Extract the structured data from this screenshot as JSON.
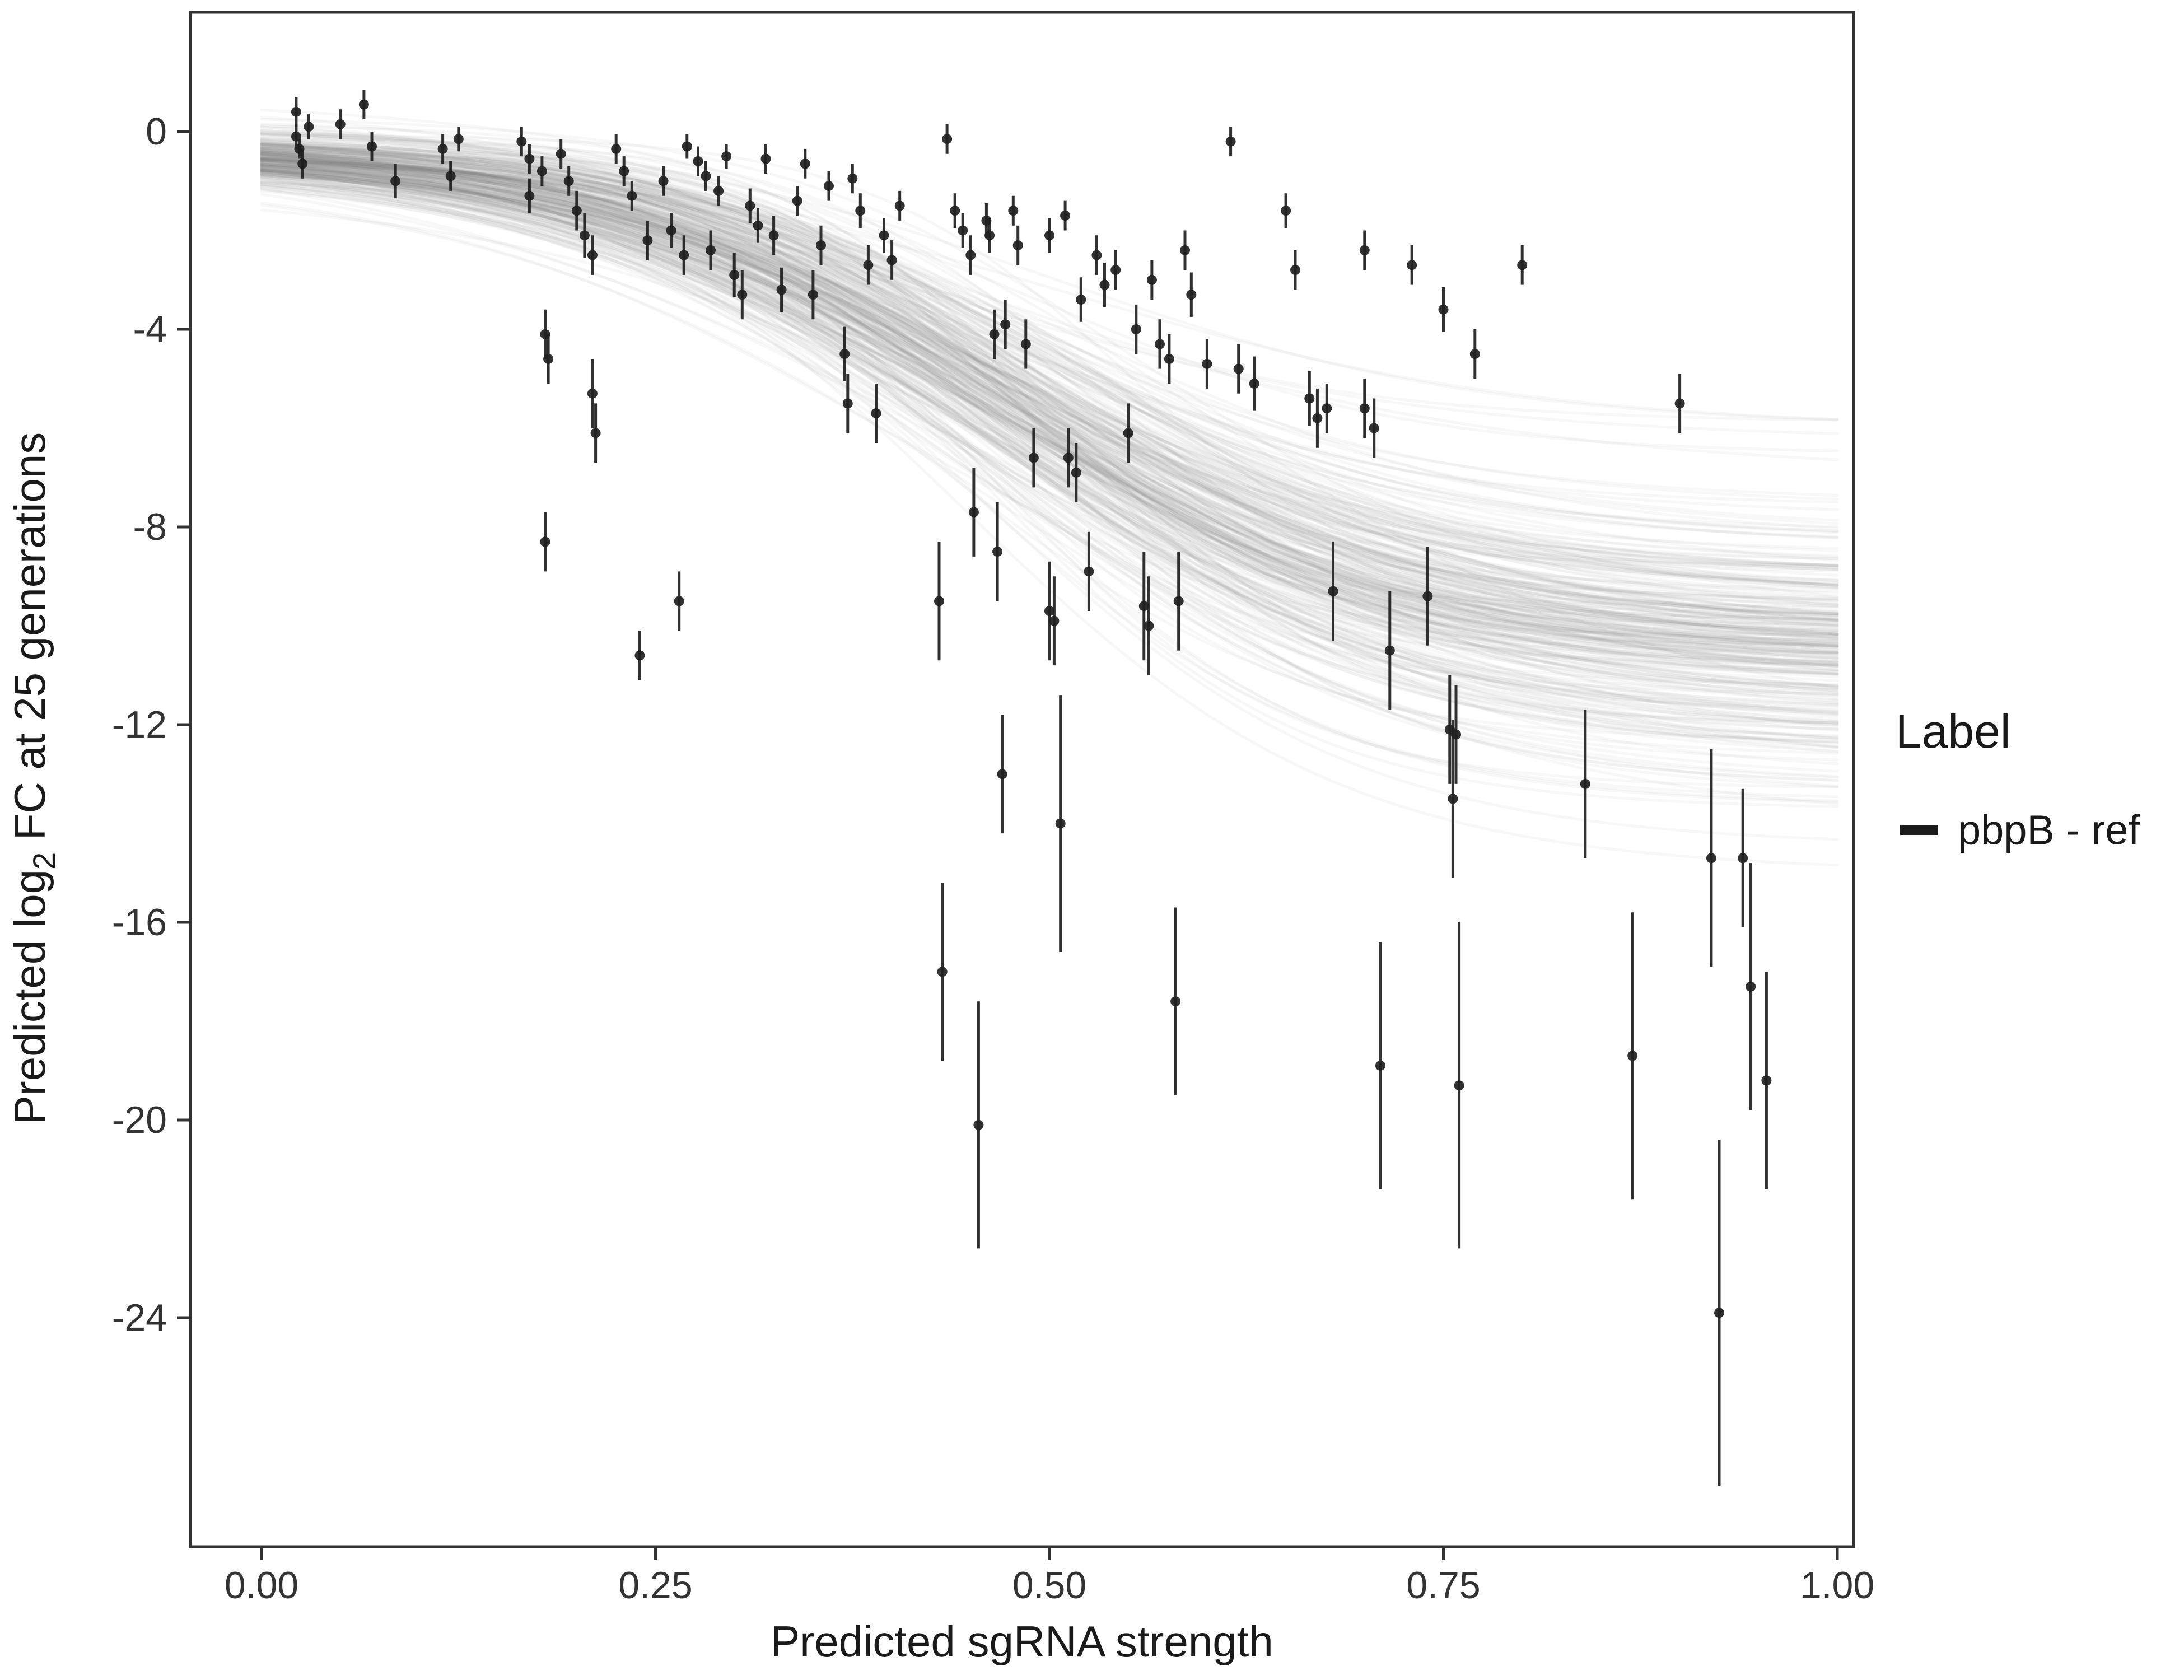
{
  "chart_data": {
    "type": "scatter",
    "title": "",
    "xlabel": "Predicted sgRNA strength",
    "ylabel": {
      "prefix": "Predicted  log",
      "sub": "2",
      "suffix": " FC at 25 generations"
    },
    "xlim": [
      -0.045,
      1.01
    ],
    "ylim": [
      -28.7,
      2.4
    ],
    "grid": false,
    "legend_position": "right",
    "x_ticks": {
      "values": [
        0,
        0.25,
        0.5,
        0.75,
        1.0
      ],
      "labels": [
        "0.00",
        "0.25",
        "0.50",
        "0.75",
        "1.00"
      ]
    },
    "y_ticks": {
      "values": [
        0,
        -4,
        -8,
        -12,
        -16,
        -20,
        -24
      ],
      "labels": [
        "0",
        "-4",
        "-8",
        "-12",
        "-16",
        "-20",
        "-24"
      ]
    },
    "legend": {
      "title": "Label",
      "items": [
        {
          "label": "pbpB - ref",
          "color": "#1c1c1c"
        }
      ]
    },
    "fit_curve": {
      "name": "pbpB - ref",
      "model": "logistic",
      "base": -0.3,
      "depth": 10.4,
      "midpoint": 0.47,
      "slope": 0.13,
      "color": "#1b1b1b",
      "width": 16
    },
    "uncertainty_band": {
      "type": "posterior-draws",
      "n_draws": 300,
      "sd_base": 0.25,
      "sd_depth": 1.3,
      "sd_midpoint": 0.03,
      "sd_slope": 0.02,
      "outlier_fraction": 0.03,
      "outlier_depth": [
        5.3,
        6.3
      ],
      "color": "#7a7a7a",
      "opacity": 0.05,
      "seed": 42
    },
    "point_style": {
      "color": "#1f1f1f",
      "radius": 9,
      "errorbar_width": 5,
      "opacity": 0.92
    },
    "points": [
      [
        0.022,
        0.4,
        0.3
      ],
      [
        0.022,
        -0.1,
        0.25
      ],
      [
        0.024,
        -0.35,
        0.2
      ],
      [
        0.026,
        -0.65,
        0.3
      ],
      [
        0.03,
        0.1,
        0.25
      ],
      [
        0.05,
        0.15,
        0.3
      ],
      [
        0.065,
        0.55,
        0.3
      ],
      [
        0.07,
        -0.3,
        0.3
      ],
      [
        0.085,
        -1.0,
        0.35
      ],
      [
        0.115,
        -0.35,
        0.3
      ],
      [
        0.12,
        -0.9,
        0.3
      ],
      [
        0.125,
        -0.15,
        0.25
      ],
      [
        0.165,
        -0.2,
        0.3
      ],
      [
        0.17,
        -0.55,
        0.3
      ],
      [
        0.17,
        -1.3,
        0.35
      ],
      [
        0.178,
        -0.8,
        0.3
      ],
      [
        0.19,
        -0.45,
        0.3
      ],
      [
        0.195,
        -1.0,
        0.3
      ],
      [
        0.2,
        -1.6,
        0.4
      ],
      [
        0.205,
        -2.1,
        0.45
      ],
      [
        0.21,
        -2.5,
        0.4
      ],
      [
        0.18,
        -4.1,
        0.5
      ],
      [
        0.182,
        -4.6,
        0.5
      ],
      [
        0.18,
        -8.3,
        0.6
      ],
      [
        0.21,
        -5.3,
        0.7
      ],
      [
        0.212,
        -6.1,
        0.6
      ],
      [
        0.24,
        -10.6,
        0.5
      ],
      [
        0.265,
        -9.5,
        0.6
      ],
      [
        0.225,
        -0.35,
        0.3
      ],
      [
        0.23,
        -0.8,
        0.3
      ],
      [
        0.235,
        -1.3,
        0.3
      ],
      [
        0.245,
        -2.2,
        0.4
      ],
      [
        0.255,
        -1.0,
        0.3
      ],
      [
        0.26,
        -2.0,
        0.35
      ],
      [
        0.268,
        -2.5,
        0.4
      ],
      [
        0.27,
        -0.3,
        0.25
      ],
      [
        0.277,
        -0.6,
        0.3
      ],
      [
        0.282,
        -0.9,
        0.3
      ],
      [
        0.285,
        -2.4,
        0.4
      ],
      [
        0.29,
        -1.2,
        0.3
      ],
      [
        0.295,
        -0.5,
        0.25
      ],
      [
        0.3,
        -2.9,
        0.45
      ],
      [
        0.305,
        -3.3,
        0.5
      ],
      [
        0.31,
        -1.5,
        0.35
      ],
      [
        0.315,
        -1.9,
        0.35
      ],
      [
        0.32,
        -0.55,
        0.3
      ],
      [
        0.325,
        -2.1,
        0.4
      ],
      [
        0.33,
        -3.2,
        0.45
      ],
      [
        0.34,
        -1.4,
        0.3
      ],
      [
        0.345,
        -0.65,
        0.3
      ],
      [
        0.35,
        -3.3,
        0.5
      ],
      [
        0.355,
        -2.3,
        0.4
      ],
      [
        0.36,
        -1.1,
        0.3
      ],
      [
        0.37,
        -4.5,
        0.55
      ],
      [
        0.372,
        -5.5,
        0.6
      ],
      [
        0.375,
        -0.95,
        0.3
      ],
      [
        0.38,
        -1.6,
        0.35
      ],
      [
        0.385,
        -2.7,
        0.4
      ],
      [
        0.39,
        -5.7,
        0.6
      ],
      [
        0.395,
        -2.1,
        0.35
      ],
      [
        0.4,
        -2.6,
        0.4
      ],
      [
        0.405,
        -1.5,
        0.3
      ],
      [
        0.43,
        -9.5,
        1.2
      ],
      [
        0.432,
        -17.0,
        1.8
      ],
      [
        0.435,
        -0.15,
        0.3
      ],
      [
        0.44,
        -1.6,
        0.35
      ],
      [
        0.445,
        -2.0,
        0.35
      ],
      [
        0.45,
        -2.5,
        0.4
      ],
      [
        0.452,
        -7.7,
        0.9
      ],
      [
        0.455,
        -20.1,
        2.5
      ],
      [
        0.46,
        -1.8,
        0.35
      ],
      [
        0.462,
        -2.1,
        0.35
      ],
      [
        0.465,
        -4.1,
        0.5
      ],
      [
        0.467,
        -8.5,
        1.0
      ],
      [
        0.47,
        -13.0,
        1.2
      ],
      [
        0.472,
        -3.9,
        0.5
      ],
      [
        0.477,
        -1.6,
        0.3
      ],
      [
        0.48,
        -2.3,
        0.4
      ],
      [
        0.485,
        -4.3,
        0.5
      ],
      [
        0.49,
        -6.6,
        0.6
      ],
      [
        0.5,
        -2.1,
        0.35
      ],
      [
        0.5,
        -9.7,
        1.0
      ],
      [
        0.503,
        -9.9,
        0.9
      ],
      [
        0.507,
        -14.0,
        2.6
      ],
      [
        0.51,
        -1.7,
        0.3
      ],
      [
        0.512,
        -6.6,
        0.6
      ],
      [
        0.517,
        -6.9,
        0.6
      ],
      [
        0.52,
        -3.4,
        0.45
      ],
      [
        0.525,
        -8.9,
        0.8
      ],
      [
        0.53,
        -2.5,
        0.4
      ],
      [
        0.535,
        -3.1,
        0.45
      ],
      [
        0.542,
        -2.8,
        0.4
      ],
      [
        0.55,
        -6.1,
        0.6
      ],
      [
        0.555,
        -4.0,
        0.5
      ],
      [
        0.56,
        -9.6,
        1.1
      ],
      [
        0.563,
        -10.0,
        1.0
      ],
      [
        0.565,
        -3.0,
        0.4
      ],
      [
        0.57,
        -4.3,
        0.5
      ],
      [
        0.576,
        -4.6,
        0.5
      ],
      [
        0.58,
        -17.6,
        1.9
      ],
      [
        0.582,
        -9.5,
        1.0
      ],
      [
        0.586,
        -2.4,
        0.4
      ],
      [
        0.59,
        -3.3,
        0.45
      ],
      [
        0.6,
        -4.7,
        0.5
      ],
      [
        0.615,
        -0.2,
        0.3
      ],
      [
        0.62,
        -4.8,
        0.5
      ],
      [
        0.63,
        -5.1,
        0.55
      ],
      [
        0.65,
        -1.6,
        0.35
      ],
      [
        0.656,
        -2.8,
        0.4
      ],
      [
        0.665,
        -5.4,
        0.55
      ],
      [
        0.67,
        -5.8,
        0.6
      ],
      [
        0.676,
        -5.6,
        0.5
      ],
      [
        0.68,
        -9.3,
        1.0
      ],
      [
        0.7,
        -2.4,
        0.4
      ],
      [
        0.7,
        -5.6,
        0.6
      ],
      [
        0.706,
        -6.0,
        0.6
      ],
      [
        0.71,
        -18.9,
        2.5
      ],
      [
        0.716,
        -10.5,
        1.2
      ],
      [
        0.73,
        -2.7,
        0.4
      ],
      [
        0.74,
        -9.4,
        1.0
      ],
      [
        0.75,
        -3.6,
        0.45
      ],
      [
        0.754,
        -12.1,
        1.1
      ],
      [
        0.756,
        -13.5,
        1.6
      ],
      [
        0.758,
        -12.2,
        1.0
      ],
      [
        0.76,
        -19.3,
        3.3
      ],
      [
        0.77,
        -4.5,
        0.5
      ],
      [
        0.8,
        -2.7,
        0.4
      ],
      [
        0.84,
        -13.2,
        1.5
      ],
      [
        0.87,
        -18.7,
        2.9
      ],
      [
        0.9,
        -5.5,
        0.6
      ],
      [
        0.92,
        -14.7,
        2.2
      ],
      [
        0.925,
        -23.9,
        3.5
      ],
      [
        0.94,
        -14.7,
        1.4
      ],
      [
        0.945,
        -17.3,
        2.5
      ],
      [
        0.955,
        -19.2,
        2.2
      ]
    ]
  }
}
